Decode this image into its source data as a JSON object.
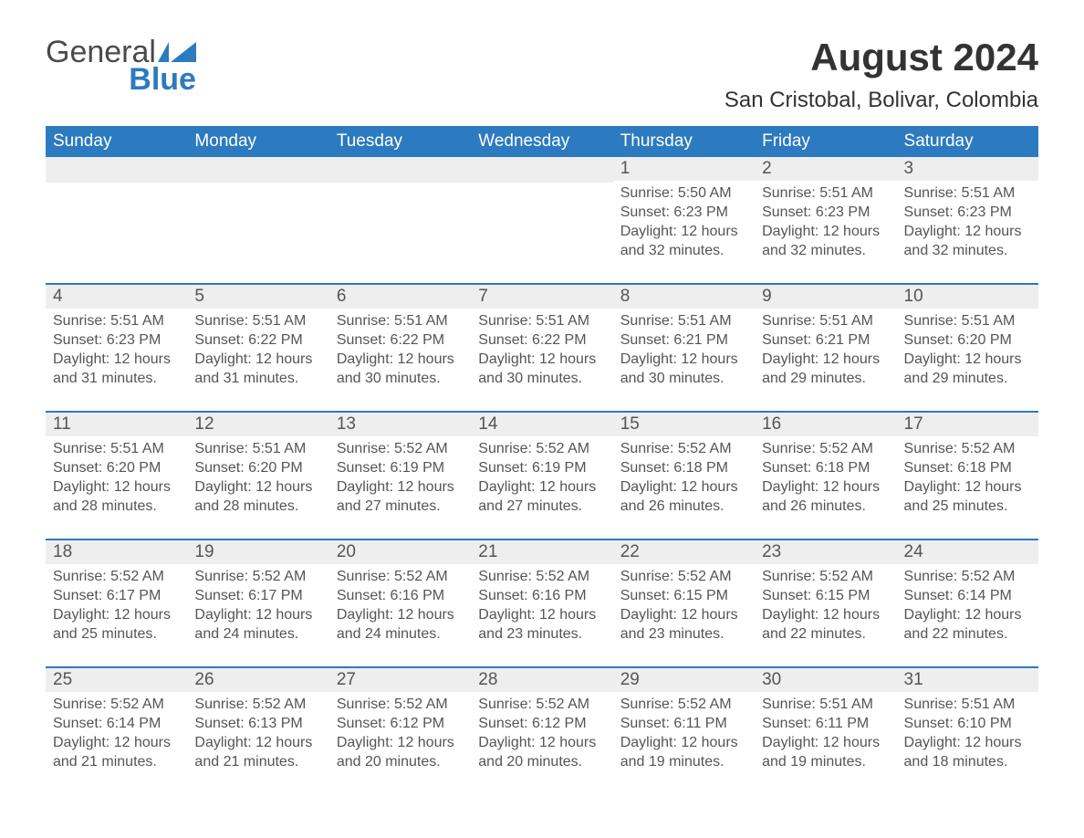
{
  "logo": {
    "text_top": "General",
    "text_bottom": "Blue",
    "flag_color": "#2c7ac0"
  },
  "title": "August 2024",
  "location": "San Cristobal, Bolivar, Colombia",
  "colors": {
    "header_bg": "#2c7ac0",
    "header_text": "#ffffff",
    "daynum_bg": "#eeeeee",
    "text": "#555555",
    "week_border": "#2c7ac0"
  },
  "weekdays": [
    "Sunday",
    "Monday",
    "Tuesday",
    "Wednesday",
    "Thursday",
    "Friday",
    "Saturday"
  ],
  "weeks": [
    [
      {
        "empty": true
      },
      {
        "empty": true
      },
      {
        "empty": true
      },
      {
        "empty": true
      },
      {
        "day": "1",
        "sunrise": "Sunrise: 5:50 AM",
        "sunset": "Sunset: 6:23 PM",
        "daylight1": "Daylight: 12 hours",
        "daylight2": "and 32 minutes."
      },
      {
        "day": "2",
        "sunrise": "Sunrise: 5:51 AM",
        "sunset": "Sunset: 6:23 PM",
        "daylight1": "Daylight: 12 hours",
        "daylight2": "and 32 minutes."
      },
      {
        "day": "3",
        "sunrise": "Sunrise: 5:51 AM",
        "sunset": "Sunset: 6:23 PM",
        "daylight1": "Daylight: 12 hours",
        "daylight2": "and 32 minutes."
      }
    ],
    [
      {
        "day": "4",
        "sunrise": "Sunrise: 5:51 AM",
        "sunset": "Sunset: 6:23 PM",
        "daylight1": "Daylight: 12 hours",
        "daylight2": "and 31 minutes."
      },
      {
        "day": "5",
        "sunrise": "Sunrise: 5:51 AM",
        "sunset": "Sunset: 6:22 PM",
        "daylight1": "Daylight: 12 hours",
        "daylight2": "and 31 minutes."
      },
      {
        "day": "6",
        "sunrise": "Sunrise: 5:51 AM",
        "sunset": "Sunset: 6:22 PM",
        "daylight1": "Daylight: 12 hours",
        "daylight2": "and 30 minutes."
      },
      {
        "day": "7",
        "sunrise": "Sunrise: 5:51 AM",
        "sunset": "Sunset: 6:22 PM",
        "daylight1": "Daylight: 12 hours",
        "daylight2": "and 30 minutes."
      },
      {
        "day": "8",
        "sunrise": "Sunrise: 5:51 AM",
        "sunset": "Sunset: 6:21 PM",
        "daylight1": "Daylight: 12 hours",
        "daylight2": "and 30 minutes."
      },
      {
        "day": "9",
        "sunrise": "Sunrise: 5:51 AM",
        "sunset": "Sunset: 6:21 PM",
        "daylight1": "Daylight: 12 hours",
        "daylight2": "and 29 minutes."
      },
      {
        "day": "10",
        "sunrise": "Sunrise: 5:51 AM",
        "sunset": "Sunset: 6:20 PM",
        "daylight1": "Daylight: 12 hours",
        "daylight2": "and 29 minutes."
      }
    ],
    [
      {
        "day": "11",
        "sunrise": "Sunrise: 5:51 AM",
        "sunset": "Sunset: 6:20 PM",
        "daylight1": "Daylight: 12 hours",
        "daylight2": "and 28 minutes."
      },
      {
        "day": "12",
        "sunrise": "Sunrise: 5:51 AM",
        "sunset": "Sunset: 6:20 PM",
        "daylight1": "Daylight: 12 hours",
        "daylight2": "and 28 minutes."
      },
      {
        "day": "13",
        "sunrise": "Sunrise: 5:52 AM",
        "sunset": "Sunset: 6:19 PM",
        "daylight1": "Daylight: 12 hours",
        "daylight2": "and 27 minutes."
      },
      {
        "day": "14",
        "sunrise": "Sunrise: 5:52 AM",
        "sunset": "Sunset: 6:19 PM",
        "daylight1": "Daylight: 12 hours",
        "daylight2": "and 27 minutes."
      },
      {
        "day": "15",
        "sunrise": "Sunrise: 5:52 AM",
        "sunset": "Sunset: 6:18 PM",
        "daylight1": "Daylight: 12 hours",
        "daylight2": "and 26 minutes."
      },
      {
        "day": "16",
        "sunrise": "Sunrise: 5:52 AM",
        "sunset": "Sunset: 6:18 PM",
        "daylight1": "Daylight: 12 hours",
        "daylight2": "and 26 minutes."
      },
      {
        "day": "17",
        "sunrise": "Sunrise: 5:52 AM",
        "sunset": "Sunset: 6:18 PM",
        "daylight1": "Daylight: 12 hours",
        "daylight2": "and 25 minutes."
      }
    ],
    [
      {
        "day": "18",
        "sunrise": "Sunrise: 5:52 AM",
        "sunset": "Sunset: 6:17 PM",
        "daylight1": "Daylight: 12 hours",
        "daylight2": "and 25 minutes."
      },
      {
        "day": "19",
        "sunrise": "Sunrise: 5:52 AM",
        "sunset": "Sunset: 6:17 PM",
        "daylight1": "Daylight: 12 hours",
        "daylight2": "and 24 minutes."
      },
      {
        "day": "20",
        "sunrise": "Sunrise: 5:52 AM",
        "sunset": "Sunset: 6:16 PM",
        "daylight1": "Daylight: 12 hours",
        "daylight2": "and 24 minutes."
      },
      {
        "day": "21",
        "sunrise": "Sunrise: 5:52 AM",
        "sunset": "Sunset: 6:16 PM",
        "daylight1": "Daylight: 12 hours",
        "daylight2": "and 23 minutes."
      },
      {
        "day": "22",
        "sunrise": "Sunrise: 5:52 AM",
        "sunset": "Sunset: 6:15 PM",
        "daylight1": "Daylight: 12 hours",
        "daylight2": "and 23 minutes."
      },
      {
        "day": "23",
        "sunrise": "Sunrise: 5:52 AM",
        "sunset": "Sunset: 6:15 PM",
        "daylight1": "Daylight: 12 hours",
        "daylight2": "and 22 minutes."
      },
      {
        "day": "24",
        "sunrise": "Sunrise: 5:52 AM",
        "sunset": "Sunset: 6:14 PM",
        "daylight1": "Daylight: 12 hours",
        "daylight2": "and 22 minutes."
      }
    ],
    [
      {
        "day": "25",
        "sunrise": "Sunrise: 5:52 AM",
        "sunset": "Sunset: 6:14 PM",
        "daylight1": "Daylight: 12 hours",
        "daylight2": "and 21 minutes."
      },
      {
        "day": "26",
        "sunrise": "Sunrise: 5:52 AM",
        "sunset": "Sunset: 6:13 PM",
        "daylight1": "Daylight: 12 hours",
        "daylight2": "and 21 minutes."
      },
      {
        "day": "27",
        "sunrise": "Sunrise: 5:52 AM",
        "sunset": "Sunset: 6:12 PM",
        "daylight1": "Daylight: 12 hours",
        "daylight2": "and 20 minutes."
      },
      {
        "day": "28",
        "sunrise": "Sunrise: 5:52 AM",
        "sunset": "Sunset: 6:12 PM",
        "daylight1": "Daylight: 12 hours",
        "daylight2": "and 20 minutes."
      },
      {
        "day": "29",
        "sunrise": "Sunrise: 5:52 AM",
        "sunset": "Sunset: 6:11 PM",
        "daylight1": "Daylight: 12 hours",
        "daylight2": "and 19 minutes."
      },
      {
        "day": "30",
        "sunrise": "Sunrise: 5:51 AM",
        "sunset": "Sunset: 6:11 PM",
        "daylight1": "Daylight: 12 hours",
        "daylight2": "and 19 minutes."
      },
      {
        "day": "31",
        "sunrise": "Sunrise: 5:51 AM",
        "sunset": "Sunset: 6:10 PM",
        "daylight1": "Daylight: 12 hours",
        "daylight2": "and 18 minutes."
      }
    ]
  ]
}
